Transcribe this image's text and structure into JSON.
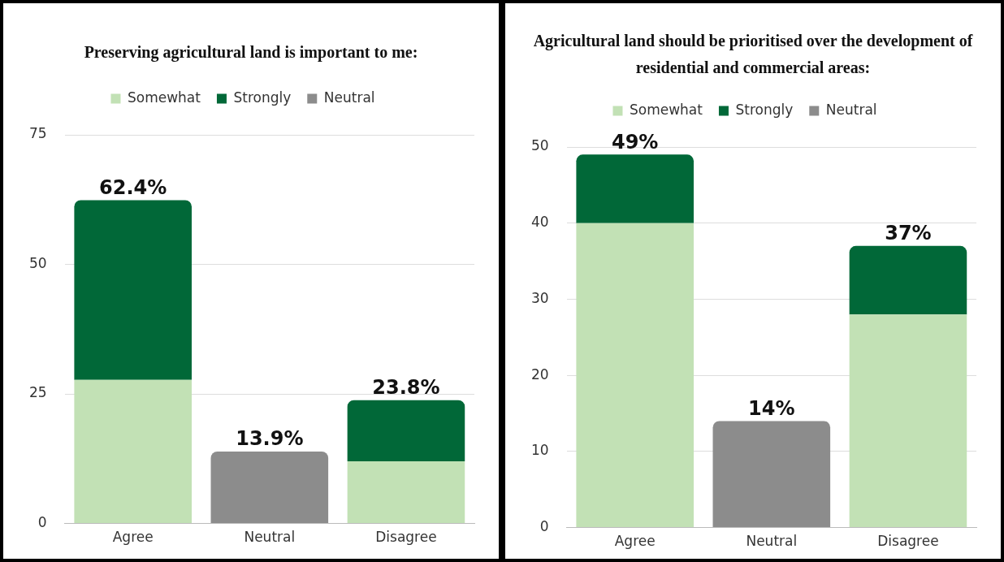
{
  "chart_data": [
    {
      "type": "bar",
      "title": "Preserving agricultural land is important to me:",
      "categories": [
        "Agree",
        "Neutral",
        "Disagree"
      ],
      "stacked": true,
      "series": [
        {
          "name": "Somewhat",
          "color": "#c2e1b5",
          "values": [
            27.7,
            null,
            12
          ]
        },
        {
          "name": "Strongly",
          "color": "#016838",
          "values": [
            34.7,
            null,
            11.8
          ]
        },
        {
          "name": "Neutral",
          "color": "#8c8c8c",
          "values": [
            null,
            13.9,
            null
          ]
        }
      ],
      "ylim": [
        0,
        75
      ],
      "yticks": [
        0,
        25,
        50,
        75
      ],
      "grid": "y",
      "legend": "top",
      "totals": [
        "62.4%",
        "13.9%",
        "23.8%"
      ]
    },
    {
      "type": "bar",
      "title": "Agricultural land should be prioritised over the development of residential and commercial areas:",
      "categories": [
        "Agree",
        "Neutral",
        "Disagree"
      ],
      "stacked": true,
      "series": [
        {
          "name": "Somewhat",
          "color": "#c2e1b5",
          "values": [
            40,
            null,
            28
          ]
        },
        {
          "name": "Strongly",
          "color": "#016838",
          "values": [
            9,
            null,
            9
          ]
        },
        {
          "name": "Neutral",
          "color": "#8c8c8c",
          "values": [
            null,
            14,
            null
          ]
        }
      ],
      "ylim": [
        0,
        50
      ],
      "yticks": [
        0,
        10,
        20,
        30,
        40,
        50
      ],
      "grid": "y",
      "legend": "top",
      "totals": [
        "49%",
        "14%",
        "37%"
      ]
    }
  ]
}
